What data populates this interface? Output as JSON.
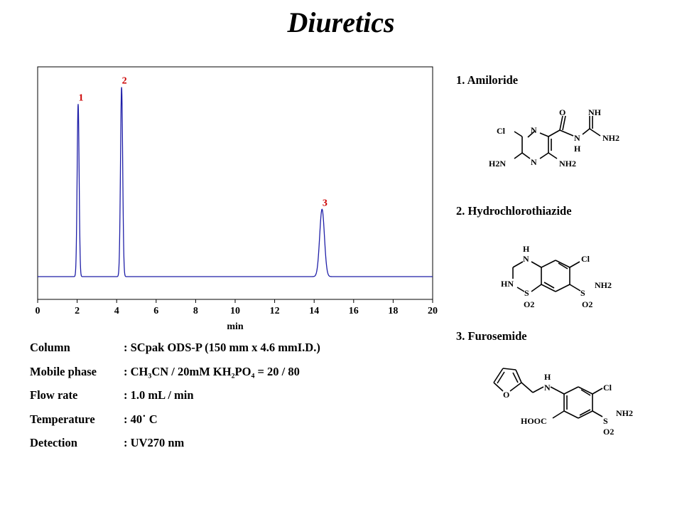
{
  "title": "Diuretics",
  "chart_data": {
    "type": "line",
    "xlabel": "min",
    "xlim": [
      0,
      20
    ],
    "xticks": [
      0,
      2,
      4,
      6,
      8,
      10,
      12,
      14,
      16,
      18,
      20
    ],
    "grid": false,
    "color": "#1f1fa8",
    "baseline": 0,
    "peaks": [
      {
        "label": "1",
        "rt": 2.05,
        "height": 0.82,
        "width": 0.05
      },
      {
        "label": "2",
        "rt": 4.25,
        "height": 0.9,
        "width": 0.055
      },
      {
        "label": "3",
        "rt": 14.4,
        "height": 0.32,
        "width": 0.12
      }
    ],
    "peak_label_color": "#cc0000"
  },
  "conditions": [
    {
      "label": "Column",
      "value": ": SCpak ODS-P  (150 mm x 4.6 mmI.D.)"
    },
    {
      "label": "Mobile phase",
      "value": ": CH₃CN / 20mM KH₂PO₄  = 20 / 80"
    },
    {
      "label": "Flow rate",
      "value": ": 1.0 mL / min"
    },
    {
      "label": "Temperature",
      "value": ": 40˙ C"
    },
    {
      "label": "Detection",
      "value": ": UV270 nm"
    }
  ],
  "compounds": [
    {
      "name": "1. Amiloride",
      "atoms": {
        "cl": "Cl",
        "n1": "N",
        "n2": "N",
        "o": "O",
        "nh": "NH",
        "nh_amide": "N",
        "h_amide": "H",
        "nh2_top": "NH2",
        "h2n": "H2N",
        "nh2_ring": "NH2"
      }
    },
    {
      "name": "2. Hydrochlorothiazide",
      "atoms": {
        "h": "H",
        "n": "N",
        "cl": "Cl",
        "hn": "HN",
        "s1": "S",
        "s2": "S",
        "nh2": "NH2",
        "o2a": "O2",
        "o2b": "O2"
      }
    },
    {
      "name": "3. Furosemide",
      "atoms": {
        "o": "O",
        "h": "H",
        "n": "N",
        "cl": "Cl",
        "hooc": "HOOC",
        "s": "S",
        "nh2": "NH2",
        "o2": "O2"
      }
    }
  ]
}
